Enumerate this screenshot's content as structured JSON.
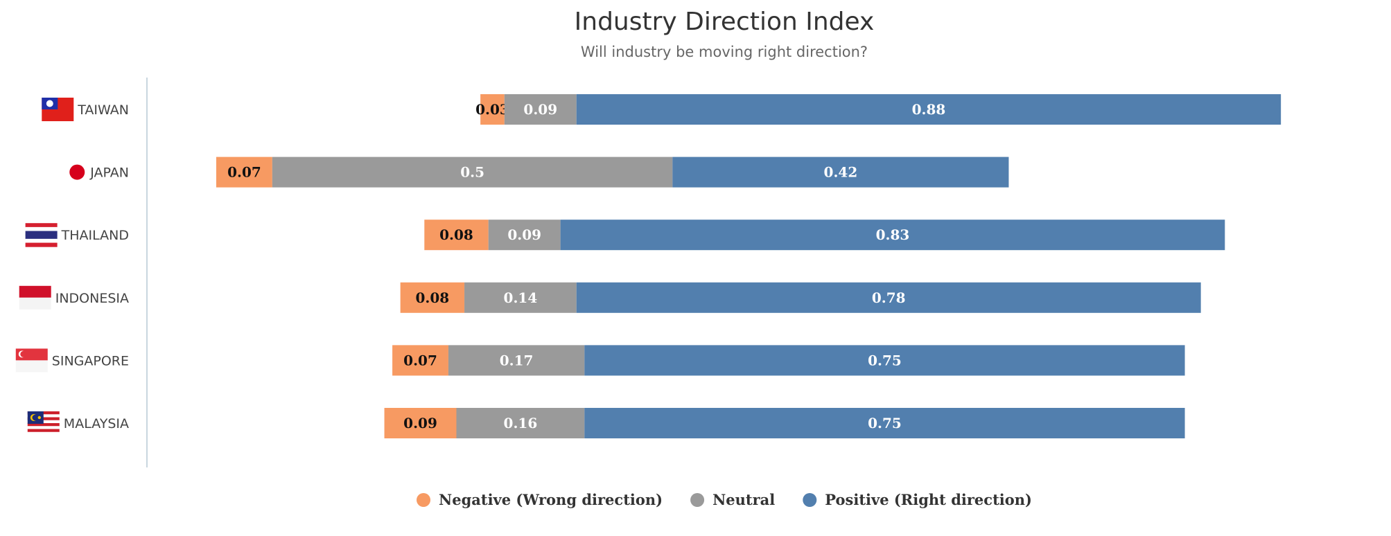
{
  "chart_data": {
    "type": "bar",
    "orientation": "horizontal",
    "stacked": true,
    "title": "Industry Direction Index",
    "subtitle": "Will industry be moving right direction?",
    "categories": [
      "TAIWAN",
      "JAPAN",
      "THAILAND",
      "INDONESIA",
      "SINGAPORE",
      "MALAYSIA"
    ],
    "offsets": [
      0.33,
      0.0,
      0.26,
      0.23,
      0.22,
      0.21
    ],
    "series": [
      {
        "name": "Negative (Wrong direction)",
        "color": "#f79a62",
        "label_color": "#111111",
        "values": [
          0.03,
          0.07,
          0.08,
          0.08,
          0.07,
          0.09
        ],
        "labels": [
          "0.03",
          "0.07",
          "0.08",
          "0.08",
          "0.07",
          "0.09"
        ]
      },
      {
        "name": "Neutral",
        "color": "#9a9a9a",
        "label_color": "#ffffff",
        "values": [
          0.09,
          0.5,
          0.09,
          0.14,
          0.17,
          0.16
        ],
        "labels": [
          "0.09",
          "0.5",
          "0.09",
          "0.14",
          "0.17",
          "0.16"
        ]
      },
      {
        "name": "Positive (Right direction)",
        "color": "#527fae",
        "label_color": "#ffffff",
        "values": [
          0.88,
          0.42,
          0.83,
          0.78,
          0.75,
          0.75
        ],
        "labels": [
          "0.88",
          "0.42",
          "0.83",
          "0.78",
          "0.75",
          "0.75"
        ]
      }
    ],
    "flags": [
      "taiwan-flag-icon",
      "japan-flag-icon",
      "thailand-flag-icon",
      "indonesia-flag-icon",
      "singapore-flag-icon",
      "malaysia-flag-icon"
    ],
    "grid": false,
    "legend_position": "bottom-center",
    "axis_line_color": "#c9d6df"
  }
}
